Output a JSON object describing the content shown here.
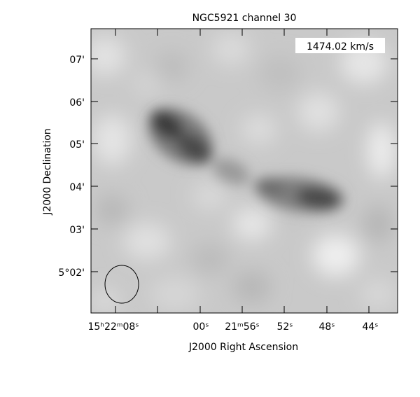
{
  "title": "NGC5921 channel 30",
  "velocity_label": "1474.02 km/s",
  "x_axis_label": "J2000 Right Ascension",
  "y_axis_label": "J2000 Declination",
  "y_ticks": [
    {
      "label": "07'"
    },
    {
      "label": "06'"
    },
    {
      "label": "05'"
    },
    {
      "label": "04'"
    },
    {
      "label": "03'"
    },
    {
      "label": "5°02'"
    }
  ],
  "x_ticks": [
    {
      "label": "15ʰ22ᵐ08ˢ"
    },
    {
      "label": "00ˢ"
    },
    {
      "label": "21ᵐ56ˢ"
    },
    {
      "label": "52ˢ"
    },
    {
      "label": "48ˢ"
    },
    {
      "label": "44ˢ"
    }
  ],
  "colors": {
    "background": "#ffffff",
    "plot_background": "#c8c8c8",
    "emission_dark": "#1e1e1e",
    "frame": "#000000"
  }
}
